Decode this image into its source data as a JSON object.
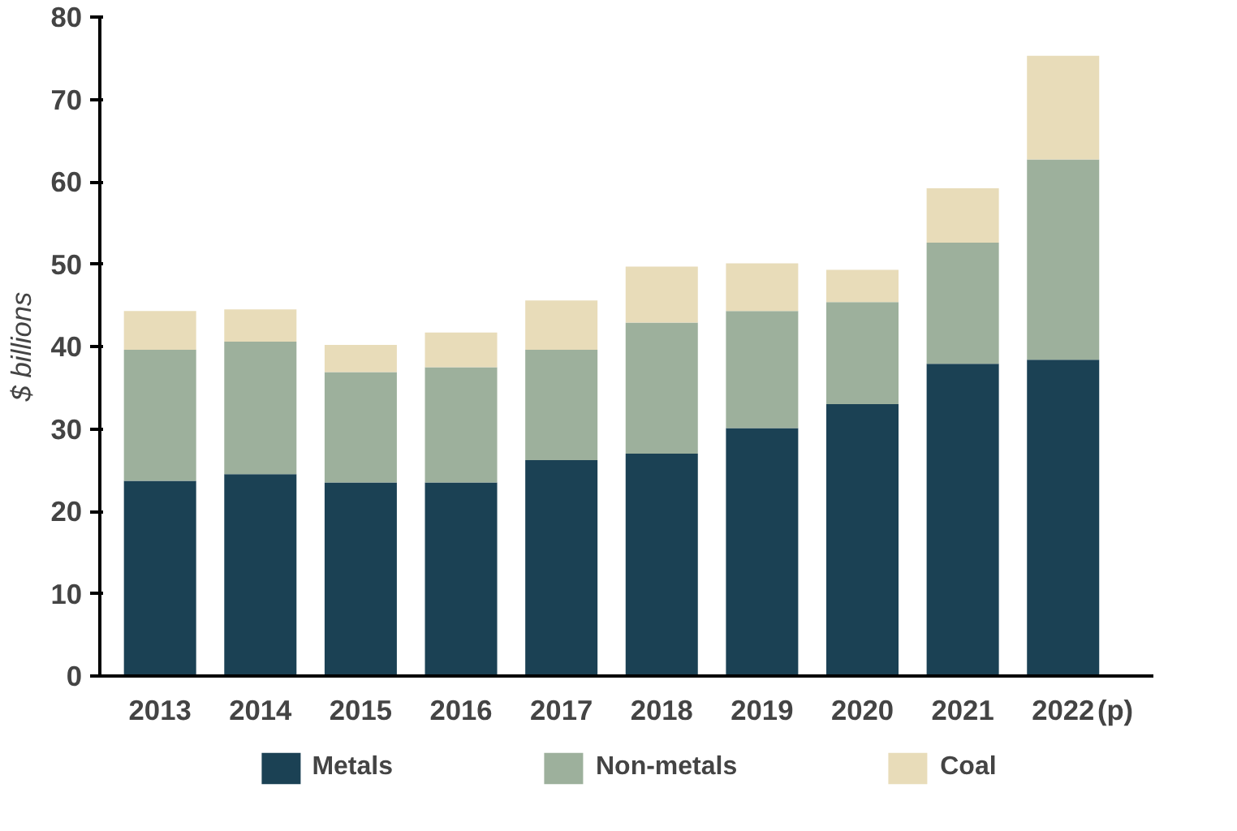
{
  "chart_data": {
    "type": "bar",
    "stacked": true,
    "ylabel": "$ billions",
    "categories": [
      "2013",
      "2014",
      "2015",
      "2016",
      "2017",
      "2018",
      "2019",
      "2020",
      "2021",
      "2022"
    ],
    "series": [
      {
        "name": "Metals",
        "color": "#1b4154",
        "values": [
          23.7,
          24.5,
          23.5,
          23.5,
          26.2,
          27.0,
          30.1,
          33.0,
          37.9,
          38.4
        ]
      },
      {
        "name": "Non-metals",
        "color": "#9db09c",
        "values": [
          15.9,
          16.1,
          13.4,
          14.0,
          13.4,
          15.9,
          14.2,
          12.4,
          14.7,
          24.3
        ]
      },
      {
        "name": "Coal",
        "color": "#e8dcb9",
        "values": [
          4.7,
          3.9,
          3.3,
          4.2,
          6.0,
          6.8,
          5.8,
          3.9,
          6.6,
          12.6
        ]
      }
    ],
    "ylim": [
      0,
      80
    ],
    "yticks": [
      0,
      10,
      20,
      30,
      40,
      50,
      60,
      70,
      80
    ],
    "grid": false,
    "legend": "bottom",
    "annotations": [
      "(p)"
    ]
  }
}
